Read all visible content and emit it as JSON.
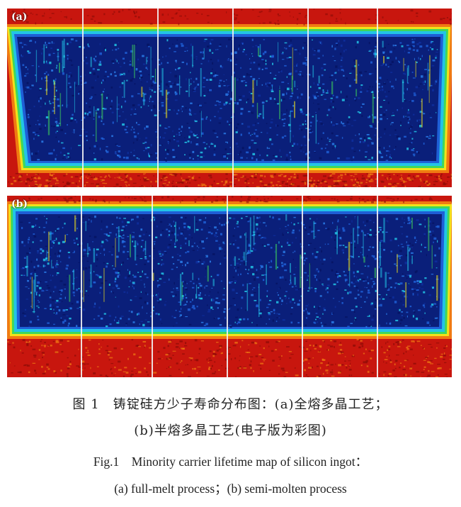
{
  "figure": {
    "panels": [
      {
        "id": "a",
        "label": "(a)"
      },
      {
        "id": "b",
        "label": "(b)"
      }
    ],
    "caption_zh_line1": "图 1　铸锭硅方少子寿命分布图：(a)全熔多晶工艺；",
    "caption_zh_line2": "(b)半熔多晶工艺(电子版为彩图)",
    "caption_en_line1": "Fig.1　Minority carrier lifetime map of silicon ingot：",
    "caption_en_line2": "(a) full-melt process；(b) semi-molten process",
    "colors": {
      "low_lifetime": "#0a1f7a",
      "mid_blue": "#1e5fd6",
      "cyan": "#22c4e6",
      "green": "#3fd75a",
      "yellow": "#f2e21a",
      "orange": "#f07a12",
      "high_red": "#c8160e",
      "dark_red": "#8a0b06"
    }
  }
}
